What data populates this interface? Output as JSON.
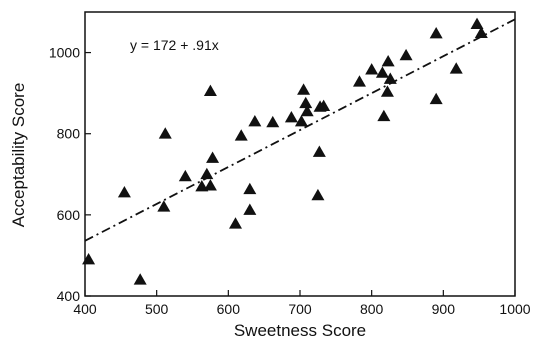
{
  "chart_data": {
    "type": "scatter",
    "xlabel": "Sweetness Score",
    "ylabel": "Acceptability Score",
    "xlim": [
      400,
      1000
    ],
    "ylim": [
      400,
      1100
    ],
    "x_ticks": [
      400,
      500,
      600,
      700,
      800,
      900,
      1000
    ],
    "y_ticks": [
      400,
      600,
      800,
      1000
    ],
    "annotation": "y = 172 + .91x",
    "regression": {
      "intercept": 172,
      "slope": 0.91,
      "style": "dash-dot"
    },
    "marker": "triangle",
    "grid": false,
    "points": [
      {
        "x": 405,
        "y": 490
      },
      {
        "x": 455,
        "y": 655
      },
      {
        "x": 477,
        "y": 440
      },
      {
        "x": 510,
        "y": 620
      },
      {
        "x": 512,
        "y": 800
      },
      {
        "x": 540,
        "y": 695
      },
      {
        "x": 563,
        "y": 670
      },
      {
        "x": 570,
        "y": 700
      },
      {
        "x": 575,
        "y": 905
      },
      {
        "x": 575,
        "y": 672
      },
      {
        "x": 578,
        "y": 740
      },
      {
        "x": 610,
        "y": 578
      },
      {
        "x": 618,
        "y": 795
      },
      {
        "x": 630,
        "y": 663
      },
      {
        "x": 630,
        "y": 612
      },
      {
        "x": 637,
        "y": 830
      },
      {
        "x": 662,
        "y": 828
      },
      {
        "x": 688,
        "y": 840
      },
      {
        "x": 702,
        "y": 830
      },
      {
        "x": 705,
        "y": 908
      },
      {
        "x": 708,
        "y": 875
      },
      {
        "x": 710,
        "y": 855
      },
      {
        "x": 725,
        "y": 648
      },
      {
        "x": 727,
        "y": 755
      },
      {
        "x": 728,
        "y": 866
      },
      {
        "x": 733,
        "y": 868
      },
      {
        "x": 783,
        "y": 928
      },
      {
        "x": 800,
        "y": 958
      },
      {
        "x": 815,
        "y": 950
      },
      {
        "x": 817,
        "y": 843
      },
      {
        "x": 822,
        "y": 903
      },
      {
        "x": 823,
        "y": 978
      },
      {
        "x": 826,
        "y": 935
      },
      {
        "x": 848,
        "y": 993
      },
      {
        "x": 890,
        "y": 1047
      },
      {
        "x": 890,
        "y": 885
      },
      {
        "x": 918,
        "y": 960
      },
      {
        "x": 947,
        "y": 1070
      },
      {
        "x": 953,
        "y": 1048
      }
    ]
  }
}
